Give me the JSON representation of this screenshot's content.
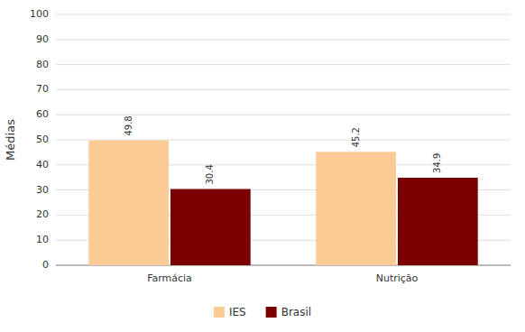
{
  "chart_data": {
    "type": "bar",
    "categories": [
      "Farmácia",
      "Nutrição"
    ],
    "series": [
      {
        "name": "IES",
        "color": "#FCCB96",
        "values": [
          49.8,
          45.2
        ]
      },
      {
        "name": "Brasil",
        "color": "#7B0000",
        "values": [
          30.4,
          34.9
        ]
      }
    ],
    "y_label": "Médias",
    "ylim": [
      0,
      100
    ],
    "yticks": [
      0,
      10,
      20,
      30,
      40,
      50,
      60,
      70,
      80,
      90,
      100
    ],
    "grid": true,
    "data_labels": true,
    "legend": "bottom"
  }
}
